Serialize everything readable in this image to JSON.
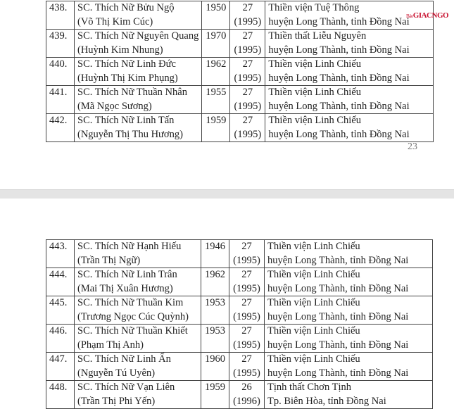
{
  "watermark": {
    "prefix": "Báo",
    "brand": "GIACNGO"
  },
  "page1": {
    "page_number": "23",
    "rows": [
      {
        "no": "438.",
        "name": "SC. Thích Nữ Bửu Ngộ",
        "lay_name": "(Võ Thị Kim Cúc)",
        "year": "1950",
        "vassa": "27",
        "vassa_year": "(1995)",
        "place1": "Thiền viện Tuệ Thông",
        "place2": "huyện Long Thành, tỉnh Đồng Nai"
      },
      {
        "no": "439.",
        "name": "SC. Thích Nữ Nguyên Quang",
        "lay_name": "(Huỳnh Kim Nhung)",
        "year": "1970",
        "vassa": "27",
        "vassa_year": "(1995)",
        "place1": "Thiền thất Liễu Nguyên",
        "place2": "huyện Long Thành, tỉnh Đồng Nai"
      },
      {
        "no": "440.",
        "name": "SC. Thích Nữ Linh Đức",
        "lay_name": "(Huỳnh Thị Kim Phụng)",
        "year": "1962",
        "vassa": "27",
        "vassa_year": "(1995)",
        "place1": "Thiền viện Linh Chiếu",
        "place2": "huyện Long Thành, tỉnh Đồng Nai"
      },
      {
        "no": "441.",
        "name": "SC. Thích Nữ Thuần Nhân",
        "lay_name": "(Mã Ngọc Sương)",
        "year": "1955",
        "vassa": "27",
        "vassa_year": "(1995)",
        "place1": "Thiền viện Linh Chiếu",
        "place2": "huyện Long Thành, tỉnh Đồng Nai"
      },
      {
        "no": "442.",
        "name": "SC. Thích Nữ Linh Tấn",
        "lay_name": "(Nguyễn Thị Thu Hương)",
        "year": "1959",
        "vassa": "27",
        "vassa_year": "(1995)",
        "place1": "Thiền viện Linh Chiếu",
        "place2": "huyện Long Thành, tỉnh Đồng Nai"
      }
    ]
  },
  "page2": {
    "rows": [
      {
        "no": "443.",
        "name": "SC. Thích Nữ Hạnh Hiếu",
        "lay_name": "(Trần Thị Ngữ)",
        "year": "1946",
        "vassa": "27",
        "vassa_year": "(1995)",
        "place1": "Thiền viện Linh Chiếu",
        "place2": "huyện Long Thành, tỉnh Đồng Nai"
      },
      {
        "no": "444.",
        "name": "SC. Thích Nữ Linh Trân",
        "lay_name": "(Mai Thị Xuân Hương)",
        "year": "1962",
        "vassa": "27",
        "vassa_year": "(1995)",
        "place1": "Thiền viện Linh Chiếu",
        "place2": "huyện Long Thành, tỉnh Đồng Nai"
      },
      {
        "no": "445.",
        "name": "SC. Thích Nữ Thuần Kim",
        "lay_name": "(Trương Ngọc Cúc Quỳnh)",
        "year": "1953",
        "vassa": "27",
        "vassa_year": "(1995)",
        "place1": "Thiền viện Linh Chiếu",
        "place2": "huyện Long Thành, tỉnh Đồng Nai"
      },
      {
        "no": "446.",
        "name": "SC. Thích Nữ Thuần Khiết",
        "lay_name": "(Phạm Thị Anh)",
        "year": "1953",
        "vassa": "27",
        "vassa_year": "(1995)",
        "place1": "Thiền viện Linh Chiếu",
        "place2": "huyện Long Thành, tỉnh Đồng Nai"
      },
      {
        "no": "447.",
        "name": "SC. Thích Nữ Linh Ấn",
        "lay_name": "(Nguyễn Tú Uyên)",
        "year": "1960",
        "vassa": "27",
        "vassa_year": "(1995)",
        "place1": "Thiền viện Linh Chiếu",
        "place2": "huyện Long Thành, tỉnh Đồng Nai"
      },
      {
        "no": "448.",
        "name": "SC. Thích Nữ Vạn Liên",
        "lay_name": "(Trần Thị Phi Yến)",
        "year": "1959",
        "vassa": "26",
        "vassa_year": "(1996)",
        "place1": "Tịnh thất Chơn Tịnh",
        "place2": "Tp. Biên Hòa, tỉnh Đồng Nai"
      }
    ]
  }
}
